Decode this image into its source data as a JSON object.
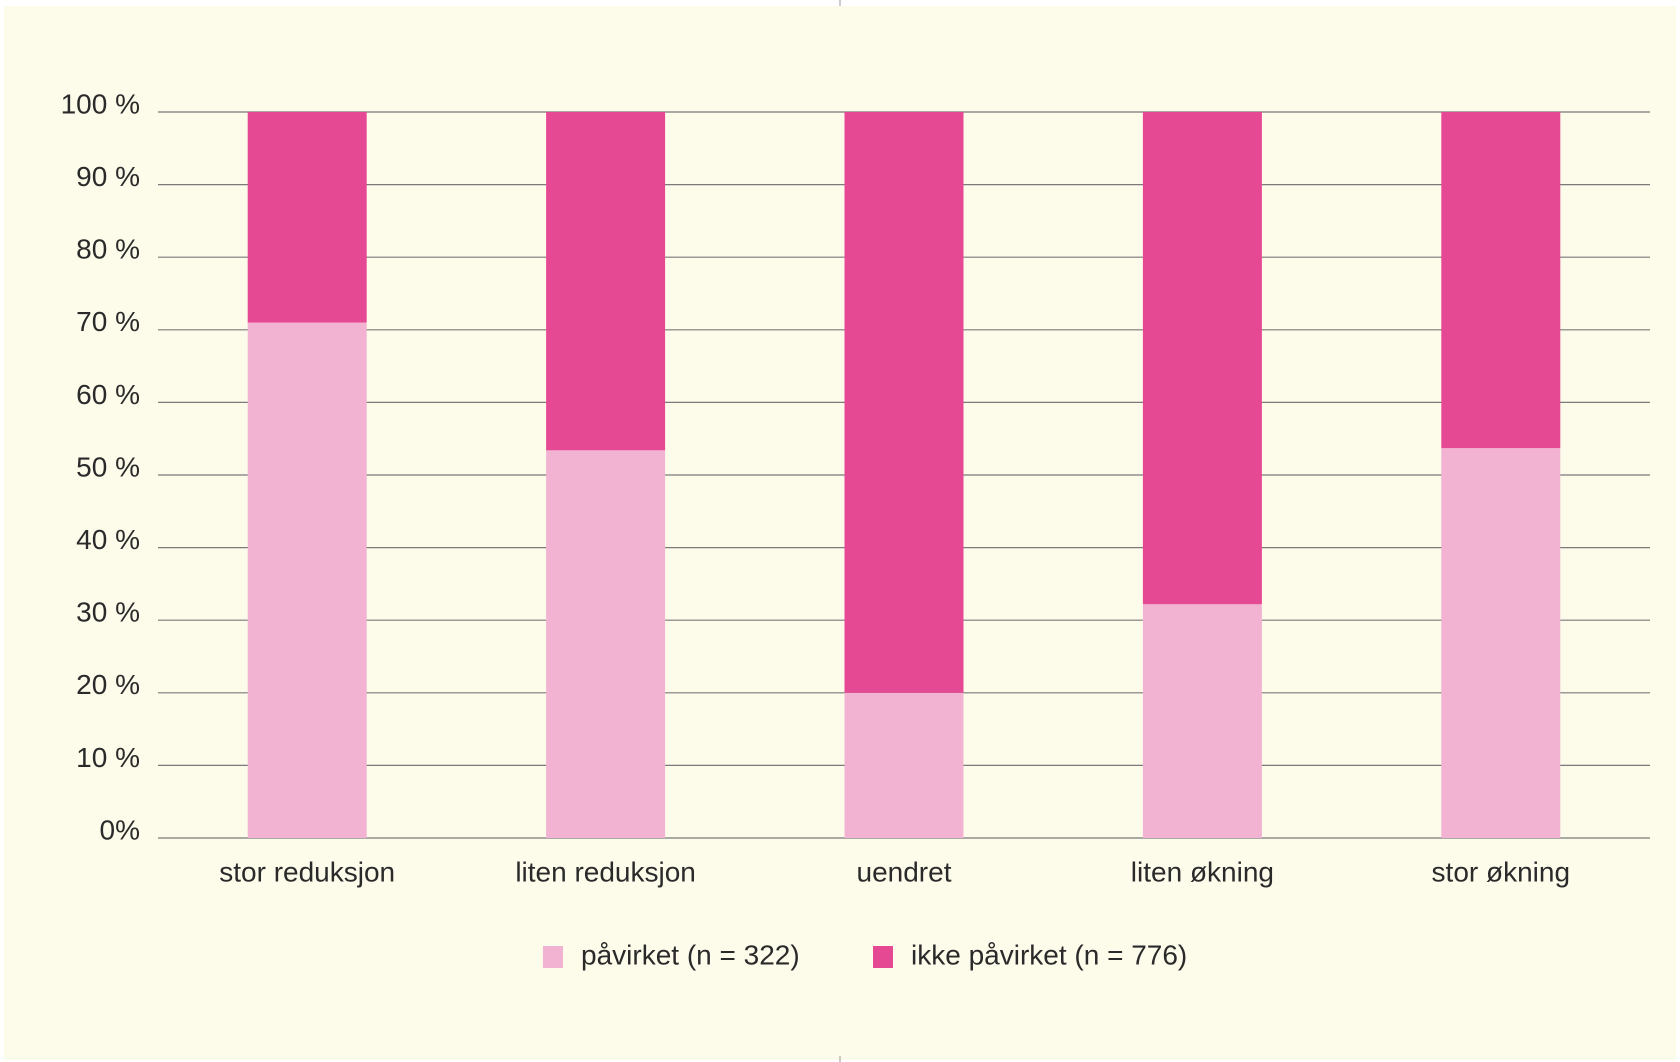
{
  "chart_data": {
    "type": "stacked_bar",
    "categories": [
      "stor reduksjon",
      "liten reduksjon",
      "uendret",
      "liten økning",
      "stor økning"
    ],
    "series": [
      {
        "name": "påvirket (n = 322)",
        "color": "#f2b3d3",
        "values": [
          71,
          53.4,
          20,
          32.2,
          53.7
        ]
      },
      {
        "name": "ikke påvirket (n = 776)",
        "color": "#e64993",
        "values": [
          29,
          46.6,
          80,
          67.8,
          46.3
        ]
      }
    ],
    "ylim": [
      0,
      100
    ],
    "yticks": [
      {
        "value": 0,
        "label": "0%"
      },
      {
        "value": 10,
        "label": "10 %"
      },
      {
        "value": 20,
        "label": "20 %"
      },
      {
        "value": 30,
        "label": "30 %"
      },
      {
        "value": 40,
        "label": "40 %"
      },
      {
        "value": 50,
        "label": "50 %"
      },
      {
        "value": 60,
        "label": "60 %"
      },
      {
        "value": 70,
        "label": "70 %"
      },
      {
        "value": 80,
        "label": "80 %"
      },
      {
        "value": 90,
        "label": "90 %"
      },
      {
        "value": 100,
        "label": "100 %"
      }
    ],
    "grid": true,
    "legend": "bottom"
  }
}
